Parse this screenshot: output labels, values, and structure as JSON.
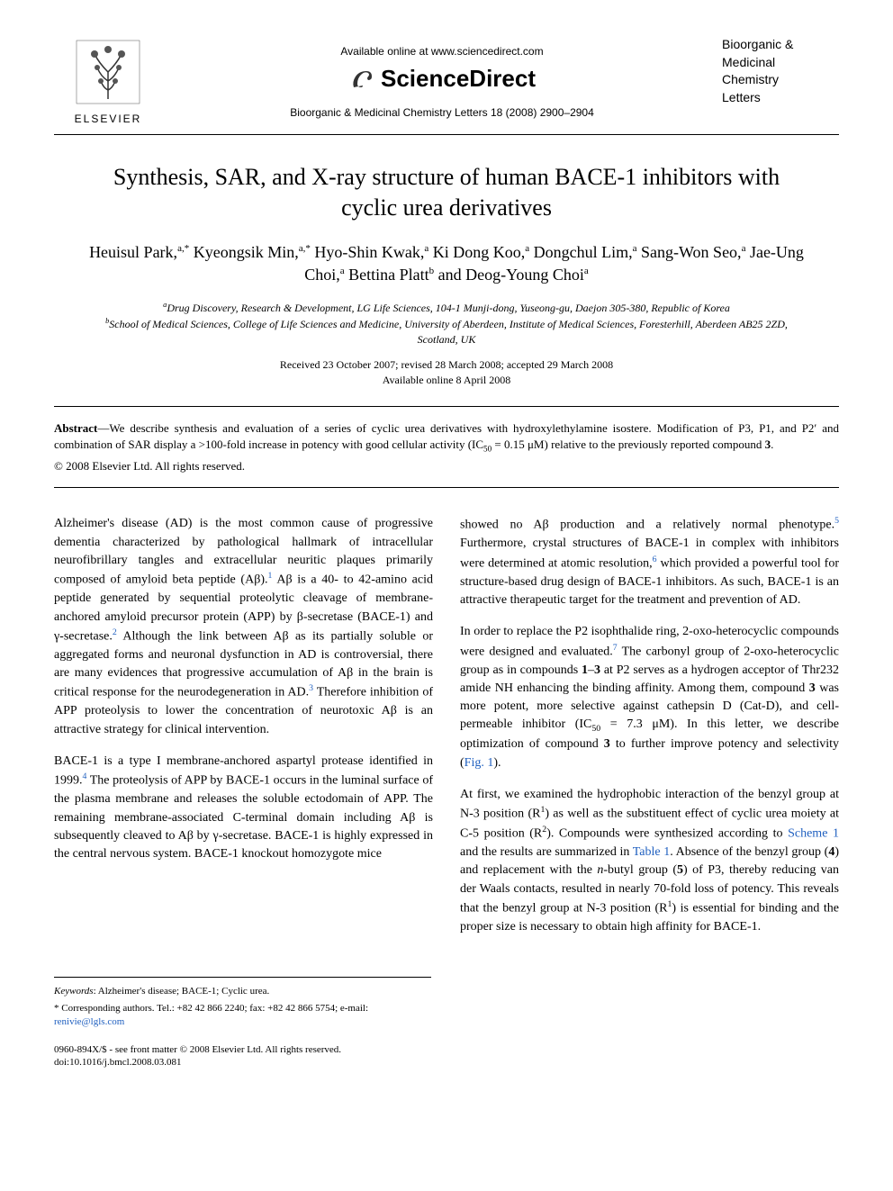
{
  "header": {
    "elsevier_label": "ELSEVIER",
    "available_online": "Available online at www.sciencedirect.com",
    "sciencedirect_label": "ScienceDirect",
    "journal_ref": "Bioorganic & Medicinal Chemistry Letters 18 (2008) 2900–2904",
    "journal_name_line1": "Bioorganic &",
    "journal_name_line2": "Medicinal",
    "journal_name_line3": "Chemistry",
    "journal_name_line4": "Letters"
  },
  "title": "Synthesis, SAR, and X-ray structure of human BACE-1 inhibitors with cyclic urea derivatives",
  "authors_html": "Heuisul Park,<sup>a,*</sup> Kyeongsik Min,<sup>a,*</sup> Hyo-Shin Kwak,<sup>a</sup> Ki Dong Koo,<sup>a</sup> Dongchul Lim,<sup>a</sup> Sang-Won Seo,<sup>a</sup> Jae-Ung Choi,<sup>a</sup> Bettina Platt<sup>b</sup> and Deog-Young Choi<sup>a</sup>",
  "affiliations_html": "<sup>a</sup>Drug Discovery, Research & Development, LG Life Sciences, 104-1 Munji-dong, Yuseong-gu, Daejon 305-380, Republic of Korea<br><sup>b</sup>School of Medical Sciences, College of Life Sciences and Medicine, University of Aberdeen, Institute of Medical Sciences, Foresterhill, Aberdeen AB25 2ZD, Scotland, UK",
  "dates_html": "Received 23 October 2007; revised 28 March 2008; accepted 29 March 2008<br>Available online 8 April 2008",
  "abstract_html": "<b>Abstract</b>—We describe synthesis and evaluation of a series of cyclic urea derivatives with hydroxylethylamine isostere. Modification of P3, P1, and P2′ and combination of SAR display a >100-fold increase in potency with good cellular activity (IC<sub>50</sub> = 0.15 μM) relative to the previously reported compound <b>3</b>.",
  "copyright": "© 2008 Elsevier Ltd. All rights reserved.",
  "body": {
    "left": {
      "p1_html": "Alzheimer's disease (AD) is the most common cause of progressive dementia characterized by pathological hallmark of intracellular neurofibrillary tangles and extracellular neuritic plaques primarily composed of amyloid beta peptide (Aβ).<sup class=\"link\">1</sup> Aβ is a 40- to 42-amino acid peptide generated by sequential proteolytic cleavage of membrane-anchored amyloid precursor protein (APP) by β-secretase (BACE-1) and γ-secretase.<sup class=\"link\">2</sup> Although the link between Aβ as its partially soluble or aggregated forms and neuronal dysfunction in AD is controversial, there are many evidences that progressive accumulation of Aβ in the brain is critical response for the neurodegeneration in AD.<sup class=\"link\">3</sup> Therefore inhibition of APP proteolysis to lower the concentration of neurotoxic Aβ is an attractive strategy for clinical intervention.",
      "p2_html": "BACE-1 is a type I membrane-anchored aspartyl protease identified in 1999.<sup class=\"link\">4</sup> The proteolysis of APP by BACE-1 occurs in the luminal surface of the plasma membrane and releases the soluble ectodomain of APP. The remaining membrane-associated C-terminal domain including Aβ is subsequently cleaved to Aβ by γ-secretase. BACE-1 is highly expressed in the central nervous system. BACE-1 knockout homozygote mice"
    },
    "right": {
      "p1_html": "showed no Aβ production and a relatively normal phenotype.<sup class=\"link\">5</sup> Furthermore, crystal structures of BACE-1 in complex with inhibitors were determined at atomic resolution,<sup class=\"link\">6</sup> which provided a powerful tool for structure-based drug design of BACE-1 inhibitors. As such, BACE-1 is an attractive therapeutic target for the treatment and prevention of AD.",
      "p2_html": "In order to replace the P2 isophthalide ring, 2-oxo-heterocyclic compounds were designed and evaluated.<sup class=\"link\">7</sup> The carbonyl group of 2-oxo-heterocyclic group as in compounds <b>1</b>–<b>3</b> at P2 serves as a hydrogen acceptor of Thr232 amide NH enhancing the binding affinity. Among them, compound <b>3</b> was more potent, more selective against cathepsin D (Cat-D), and cell-permeable inhibitor (IC<sub>50</sub> = 7.3 μM). In this letter, we describe optimization of compound <b>3</b> to further improve potency and selectivity (<span class=\"link\">Fig. 1</span>).",
      "p3_html": "At first, we examined the hydrophobic interaction of the benzyl group at N-3 position (R<sup>1</sup>) as well as the substituent effect of cyclic urea moiety at C-5 position (R<sup>2</sup>). Compounds were synthesized according to <span class=\"link\">Scheme 1</span> and the results are summarized in <span class=\"link\">Table 1</span>. Absence of the benzyl group (<b>4</b>) and replacement with the <i>n</i>-butyl group (<b>5</b>) of P3, thereby reducing van der Waals contacts, resulted in nearly 70-fold loss of potency. This reveals that the benzyl group at N-3 position (R<sup>1</sup>) is essential for binding and the proper size is necessary to obtain high affinity for BACE-1."
    }
  },
  "footnotes": {
    "keywords_html": "<i>Keywords</i>: Alzheimer's disease; BACE-1; Cyclic urea.",
    "corresponding_html": "* Corresponding authors. Tel.: +82 42 866 2240; fax: +82 42 866 5754; e-mail: <span class=\"link\">renivie@lgls.com</span>"
  },
  "footer": {
    "issn_line": "0960-894X/$ - see front matter © 2008 Elsevier Ltd. All rights reserved.",
    "doi_line": "doi:10.1016/j.bmcl.2008.03.081"
  },
  "colors": {
    "text": "#000000",
    "background": "#ffffff",
    "link": "#2060c0",
    "elsevier_orange": "#e87722"
  }
}
